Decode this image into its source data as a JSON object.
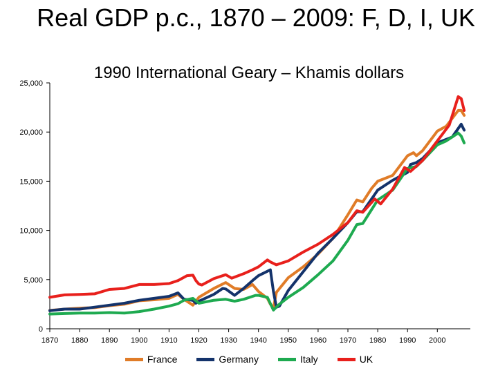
{
  "title": "Real GDP p.c., 1870 – 2009: F, D, I, UK",
  "subtitle": "1990 International Geary – Khamis dollars",
  "chart_data": {
    "type": "line",
    "title": "Real GDP p.c., 1870 – 2009: F, D, I, UK",
    "subtitle": "1990 International Geary – Khamis dollars",
    "xlim": [
      1870,
      2009
    ],
    "ylim": [
      0,
      25000
    ],
    "x_ticks": [
      "1870",
      "1880",
      "1890",
      "1900",
      "1910",
      "1920",
      "1930",
      "1940",
      "1950",
      "1960",
      "1970",
      "1980",
      "1990",
      "2000"
    ],
    "y_ticks": [
      "0",
      "5,000",
      "10,000",
      "15,000",
      "20,000",
      "25,000"
    ],
    "legend_position": "bottom",
    "series": [
      {
        "name": "France",
        "color": "#e07c28",
        "points": [
          [
            1870,
            1870
          ],
          [
            1875,
            2000
          ],
          [
            1880,
            2100
          ],
          [
            1885,
            2150
          ],
          [
            1890,
            2350
          ],
          [
            1895,
            2500
          ],
          [
            1900,
            2850
          ],
          [
            1905,
            2950
          ],
          [
            1910,
            3100
          ],
          [
            1913,
            3500
          ],
          [
            1915,
            3000
          ],
          [
            1918,
            2400
          ],
          [
            1920,
            3200
          ],
          [
            1925,
            4100
          ],
          [
            1929,
            4700
          ],
          [
            1932,
            4100
          ],
          [
            1935,
            4000
          ],
          [
            1938,
            4500
          ],
          [
            1940,
            3800
          ],
          [
            1943,
            3100
          ],
          [
            1944,
            2500
          ],
          [
            1945,
            2100
          ],
          [
            1946,
            3700
          ],
          [
            1950,
            5200
          ],
          [
            1955,
            6300
          ],
          [
            1960,
            7600
          ],
          [
            1965,
            9200
          ],
          [
            1970,
            11600
          ],
          [
            1973,
            13100
          ],
          [
            1975,
            12900
          ],
          [
            1978,
            14300
          ],
          [
            1980,
            15000
          ],
          [
            1985,
            15600
          ],
          [
            1990,
            17600
          ],
          [
            1992,
            17900
          ],
          [
            1993,
            17600
          ],
          [
            1995,
            18100
          ],
          [
            2000,
            20100
          ],
          [
            2003,
            20600
          ],
          [
            2007,
            22200
          ],
          [
            2008,
            22200
          ],
          [
            2009,
            21700
          ]
        ]
      },
      {
        "name": "Germany",
        "color": "#14336b",
        "points": [
          [
            1870,
            1840
          ],
          [
            1875,
            2000
          ],
          [
            1880,
            2000
          ],
          [
            1885,
            2200
          ],
          [
            1890,
            2400
          ],
          [
            1895,
            2600
          ],
          [
            1900,
            2900
          ],
          [
            1905,
            3100
          ],
          [
            1910,
            3300
          ],
          [
            1913,
            3650
          ],
          [
            1915,
            3000
          ],
          [
            1918,
            2900
          ],
          [
            1919,
            2600
          ],
          [
            1920,
            2800
          ],
          [
            1925,
            3500
          ],
          [
            1928,
            4100
          ],
          [
            1929,
            4050
          ],
          [
            1932,
            3400
          ],
          [
            1935,
            4100
          ],
          [
            1938,
            4900
          ],
          [
            1940,
            5400
          ],
          [
            1944,
            6000
          ],
          [
            1945,
            3800
          ],
          [
            1946,
            2200
          ],
          [
            1947,
            2300
          ],
          [
            1950,
            3900
          ],
          [
            1955,
            5800
          ],
          [
            1960,
            7700
          ],
          [
            1965,
            9200
          ],
          [
            1970,
            10800
          ],
          [
            1973,
            11900
          ],
          [
            1975,
            11900
          ],
          [
            1980,
            14100
          ],
          [
            1985,
            15100
          ],
          [
            1990,
            15900
          ],
          [
            1991,
            16700
          ],
          [
            1993,
            16900
          ],
          [
            1995,
            17300
          ],
          [
            2000,
            18900
          ],
          [
            2005,
            19500
          ],
          [
            2008,
            20800
          ],
          [
            2009,
            20200
          ]
        ]
      },
      {
        "name": "Italy",
        "color": "#1eaa50",
        "points": [
          [
            1870,
            1500
          ],
          [
            1875,
            1550
          ],
          [
            1880,
            1600
          ],
          [
            1885,
            1600
          ],
          [
            1890,
            1650
          ],
          [
            1895,
            1600
          ],
          [
            1900,
            1750
          ],
          [
            1905,
            2000
          ],
          [
            1910,
            2300
          ],
          [
            1913,
            2550
          ],
          [
            1915,
            2900
          ],
          [
            1918,
            3100
          ],
          [
            1920,
            2600
          ],
          [
            1925,
            2900
          ],
          [
            1929,
            3000
          ],
          [
            1932,
            2800
          ],
          [
            1935,
            3000
          ],
          [
            1939,
            3400
          ],
          [
            1940,
            3400
          ],
          [
            1943,
            3200
          ],
          [
            1945,
            1900
          ],
          [
            1947,
            2500
          ],
          [
            1950,
            3200
          ],
          [
            1955,
            4200
          ],
          [
            1960,
            5500
          ],
          [
            1965,
            6900
          ],
          [
            1970,
            9000
          ],
          [
            1973,
            10600
          ],
          [
            1975,
            10700
          ],
          [
            1980,
            13100
          ],
          [
            1985,
            14100
          ],
          [
            1990,
            16300
          ],
          [
            1993,
            16500
          ],
          [
            1995,
            17100
          ],
          [
            2000,
            18700
          ],
          [
            2003,
            19100
          ],
          [
            2007,
            19900
          ],
          [
            2008,
            19600
          ],
          [
            2009,
            18900
          ]
        ]
      },
      {
        "name": "UK",
        "color": "#e8201c",
        "points": [
          [
            1870,
            3200
          ],
          [
            1875,
            3450
          ],
          [
            1880,
            3500
          ],
          [
            1885,
            3550
          ],
          [
            1890,
            4000
          ],
          [
            1895,
            4100
          ],
          [
            1900,
            4500
          ],
          [
            1905,
            4500
          ],
          [
            1910,
            4600
          ],
          [
            1913,
            4900
          ],
          [
            1916,
            5400
          ],
          [
            1918,
            5450
          ],
          [
            1919,
            4900
          ],
          [
            1920,
            4550
          ],
          [
            1921,
            4450
          ],
          [
            1925,
            5100
          ],
          [
            1929,
            5500
          ],
          [
            1931,
            5150
          ],
          [
            1935,
            5600
          ],
          [
            1938,
            6000
          ],
          [
            1940,
            6300
          ],
          [
            1943,
            7000
          ],
          [
            1944,
            6800
          ],
          [
            1946,
            6500
          ],
          [
            1950,
            6900
          ],
          [
            1955,
            7800
          ],
          [
            1960,
            8600
          ],
          [
            1965,
            9600
          ],
          [
            1970,
            10800
          ],
          [
            1973,
            12000
          ],
          [
            1975,
            11850
          ],
          [
            1979,
            13200
          ],
          [
            1981,
            12700
          ],
          [
            1985,
            14200
          ],
          [
            1989,
            16400
          ],
          [
            1991,
            16000
          ],
          [
            1995,
            17100
          ],
          [
            2000,
            19100
          ],
          [
            2004,
            20700
          ],
          [
            2007,
            23600
          ],
          [
            2008,
            23400
          ],
          [
            2009,
            22200
          ]
        ]
      }
    ]
  }
}
